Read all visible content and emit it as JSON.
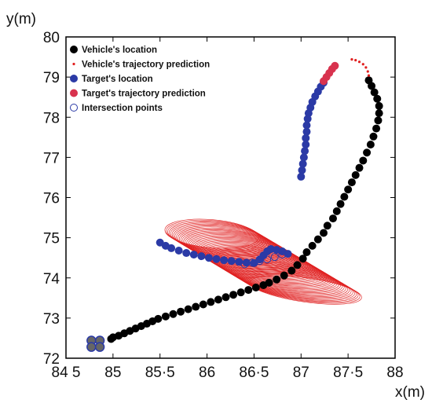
{
  "chart_data": {
    "type": "scatter",
    "title": "",
    "xlabel": "x(m)",
    "ylabel": "y(m)",
    "xlim": [
      84.5,
      88
    ],
    "ylim": [
      72,
      80
    ],
    "grid": false,
    "legend_position": "top-left",
    "x_tick_labels": [
      {
        "value": 84.5,
        "label": "84 5"
      },
      {
        "value": 85,
        "label": "85"
      },
      {
        "value": 85.5,
        "label": "85·5"
      },
      {
        "value": 86,
        "label": "86"
      },
      {
        "value": 86.5,
        "label": "86·5"
      },
      {
        "value": 87,
        "label": "87"
      },
      {
        "value": 87.5,
        "label": "87·5"
      },
      {
        "value": 88,
        "label": "88"
      }
    ],
    "y_tick_labels": [
      {
        "value": 72,
        "label": "72"
      },
      {
        "value": 73,
        "label": "73"
      },
      {
        "value": 74,
        "label": "74"
      },
      {
        "value": 75,
        "label": "75"
      },
      {
        "value": 76,
        "label": "76"
      },
      {
        "value": 77,
        "label": "77"
      },
      {
        "value": 78,
        "label": "78"
      },
      {
        "value": 79,
        "label": "79"
      },
      {
        "value": 80,
        "label": "80"
      }
    ],
    "series": [
      {
        "name": "Vehicle's location",
        "marker": "filled-circle",
        "color": "#000000",
        "points": [
          [
            84.98,
            72.48
          ],
          [
            85.0,
            72.52
          ],
          [
            85.06,
            72.56
          ],
          [
            85.12,
            72.62
          ],
          [
            85.18,
            72.68
          ],
          [
            85.24,
            72.74
          ],
          [
            85.3,
            72.8
          ],
          [
            85.36,
            72.86
          ],
          [
            85.42,
            72.92
          ],
          [
            85.48,
            72.98
          ],
          [
            85.56,
            73.04
          ],
          [
            85.64,
            73.1
          ],
          [
            85.72,
            73.16
          ],
          [
            85.8,
            73.22
          ],
          [
            85.88,
            73.28
          ],
          [
            85.96,
            73.34
          ],
          [
            86.04,
            73.4
          ],
          [
            86.12,
            73.46
          ],
          [
            86.2,
            73.52
          ],
          [
            86.28,
            73.58
          ],
          [
            86.36,
            73.64
          ],
          [
            86.44,
            73.7
          ],
          [
            86.52,
            73.76
          ],
          [
            86.6,
            73.82
          ],
          [
            86.66,
            73.88
          ],
          [
            86.74,
            73.96
          ],
          [
            86.82,
            74.06
          ],
          [
            86.9,
            74.18
          ],
          [
            86.96,
            74.32
          ],
          [
            87.02,
            74.48
          ],
          [
            87.06,
            74.64
          ],
          [
            87.12,
            74.8
          ],
          [
            87.18,
            74.96
          ],
          [
            87.24,
            75.12
          ],
          [
            87.28,
            75.3
          ],
          [
            87.34,
            75.48
          ],
          [
            87.38,
            75.66
          ],
          [
            87.42,
            75.84
          ],
          [
            87.46,
            76.02
          ],
          [
            87.5,
            76.2
          ],
          [
            87.54,
            76.38
          ],
          [
            87.58,
            76.56
          ],
          [
            87.62,
            76.74
          ],
          [
            87.66,
            76.92
          ],
          [
            87.7,
            77.12
          ],
          [
            87.74,
            77.32
          ],
          [
            87.77,
            77.52
          ],
          [
            87.8,
            77.72
          ],
          [
            87.82,
            77.92
          ],
          [
            87.83,
            78.1
          ],
          [
            87.83,
            78.28
          ],
          [
            87.81,
            78.46
          ],
          [
            87.78,
            78.62
          ],
          [
            87.75,
            78.78
          ],
          [
            87.72,
            78.92
          ]
        ]
      },
      {
        "name": "Vehicle's trajectory prediction",
        "marker": "dot",
        "color": "#e02020",
        "points": [
          [
            87.54,
            79.44
          ],
          [
            87.58,
            79.42
          ],
          [
            87.62,
            79.38
          ],
          [
            87.66,
            79.32
          ],
          [
            87.69,
            79.24
          ],
          [
            87.71,
            79.14
          ],
          [
            87.72,
            79.04
          ]
        ]
      },
      {
        "name": "Target's location",
        "marker": "filled-circle",
        "color": "#2b3aa6",
        "points": [
          [
            87.0,
            76.52
          ],
          [
            87.01,
            76.68
          ],
          [
            87.02,
            76.84
          ],
          [
            87.03,
            77.0
          ],
          [
            87.04,
            77.16
          ],
          [
            87.05,
            77.32
          ],
          [
            87.05,
            77.48
          ],
          [
            87.06,
            77.64
          ],
          [
            87.06,
            77.8
          ],
          [
            87.07,
            77.96
          ],
          [
            87.08,
            78.1
          ],
          [
            87.1,
            78.24
          ],
          [
            87.12,
            78.38
          ],
          [
            87.15,
            78.52
          ],
          [
            87.18,
            78.64
          ],
          [
            87.21,
            78.76
          ],
          [
            87.24,
            78.86
          ],
          [
            85.5,
            74.88
          ],
          [
            85.56,
            74.8
          ],
          [
            85.62,
            74.74
          ],
          [
            85.7,
            74.68
          ],
          [
            85.78,
            74.62
          ],
          [
            85.86,
            74.58
          ],
          [
            85.94,
            74.54
          ],
          [
            86.02,
            74.5
          ],
          [
            86.1,
            74.47
          ],
          [
            86.18,
            74.44
          ],
          [
            86.26,
            74.42
          ],
          [
            86.34,
            74.4
          ],
          [
            86.42,
            74.38
          ],
          [
            86.5,
            74.37
          ],
          [
            86.56,
            74.46
          ],
          [
            86.6,
            74.56
          ],
          [
            86.64,
            74.66
          ],
          [
            86.68,
            74.72
          ],
          [
            86.74,
            74.7
          ],
          [
            86.8,
            74.66
          ],
          [
            86.86,
            74.6
          ]
        ]
      },
      {
        "name": "Target's trajectory prediction",
        "marker": "filled-circle",
        "color": "#d8324e",
        "points": [
          [
            87.24,
            78.9
          ],
          [
            87.27,
            79.0
          ],
          [
            87.3,
            79.1
          ],
          [
            87.33,
            79.2
          ],
          [
            87.36,
            79.28
          ]
        ]
      },
      {
        "name": "Intersection points",
        "marker": "open-circle",
        "color": "#2b3aa6",
        "points": [
          [
            86.4,
            74.34
          ],
          [
            86.48,
            74.38
          ],
          [
            86.56,
            74.42
          ],
          [
            86.64,
            74.46
          ],
          [
            86.72,
            74.52
          ],
          [
            86.8,
            74.58
          ]
        ]
      }
    ],
    "prediction_ellipses": {
      "color": "#e02020",
      "note_series": "Target's trajectory prediction",
      "count": 60,
      "start": {
        "cx": 86.05,
        "cy": 75.1,
        "rx": 0.5,
        "ry": 0.35,
        "angle_deg": 5
      },
      "end": {
        "cx": 87.05,
        "cy": 73.7,
        "rx": 0.6,
        "ry": 0.3,
        "angle_deg": 8
      }
    },
    "start_markers": {
      "color_fill": "#666666",
      "color_edge": "#2b3aa6",
      "points": [
        [
          84.77,
          72.44
        ],
        [
          84.86,
          72.44
        ],
        [
          84.77,
          72.28
        ],
        [
          84.86,
          72.28
        ]
      ]
    }
  }
}
